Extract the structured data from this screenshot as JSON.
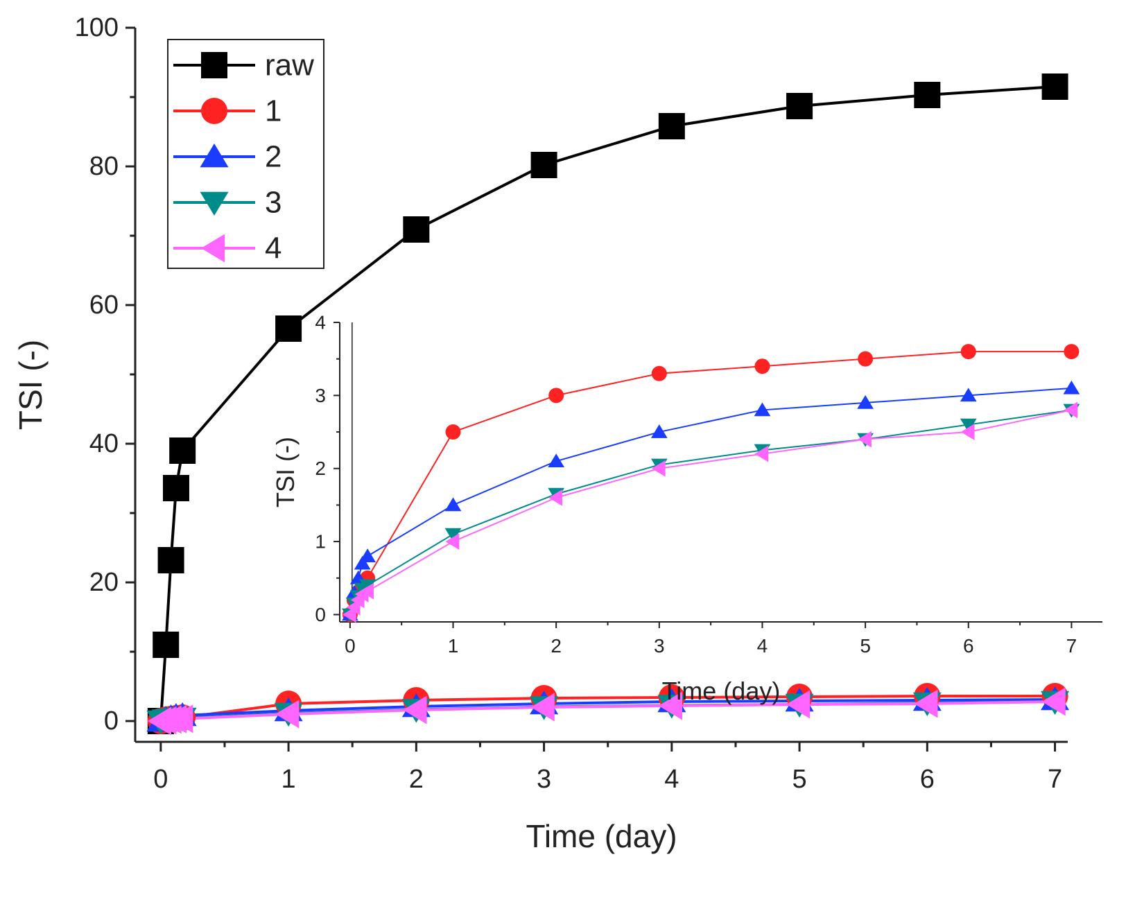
{
  "chart_data": [
    {
      "name": "main",
      "type": "line",
      "xlabel": "Time (day)",
      "ylabel": "TSI (-)",
      "xlim": [
        -0.2,
        7.1
      ],
      "ylim": [
        -3,
        100
      ],
      "xticks": [
        0,
        1,
        2,
        3,
        4,
        5,
        6,
        7
      ],
      "xtick_labels": [
        "0",
        "1",
        "2",
        "3",
        "4",
        "5",
        "6",
        "7"
      ],
      "yticks": [
        0,
        20,
        40,
        60,
        80,
        100
      ],
      "ytick_labels": [
        "0",
        "20",
        "40",
        "60",
        "80",
        "100"
      ],
      "legend": {
        "position": "top-left",
        "entries": [
          "raw",
          "1",
          "2",
          "3",
          "4"
        ]
      },
      "series": [
        {
          "name": "raw",
          "color": "#000000",
          "marker": "square",
          "x": [
            0,
            0.04,
            0.08,
            0.12,
            0.17,
            1,
            2,
            3,
            4,
            5,
            6,
            7
          ],
          "y": [
            0,
            11,
            23.2,
            33.6,
            39,
            56.6,
            70.9,
            80.2,
            85.8,
            88.7,
            90.3,
            91.5
          ]
        },
        {
          "name": "1",
          "color": "#ff2222",
          "marker": "circle",
          "x": [
            0,
            0.04,
            0.08,
            0.12,
            0.17,
            1,
            2,
            3,
            4,
            5,
            6,
            7
          ],
          "y": [
            0,
            0.2,
            0.3,
            0.4,
            0.5,
            2.5,
            3,
            3.3,
            3.4,
            3.5,
            3.6,
            3.6
          ]
        },
        {
          "name": "2",
          "color": "#1a3cff",
          "marker": "triangle-up",
          "x": [
            0,
            0.04,
            0.08,
            0.12,
            0.17,
            1,
            2,
            3,
            4,
            5,
            6,
            7
          ],
          "y": [
            0,
            0.3,
            0.5,
            0.7,
            0.8,
            1.5,
            2.1,
            2.5,
            2.8,
            2.9,
            3.0,
            3.1
          ]
        },
        {
          "name": "3",
          "color": "#008b8b",
          "marker": "triangle-down",
          "x": [
            0,
            0.04,
            0.08,
            0.12,
            0.17,
            1,
            2,
            3,
            4,
            5,
            6,
            7
          ],
          "y": [
            0,
            0.15,
            0.25,
            0.35,
            0.4,
            1.1,
            1.65,
            2.05,
            2.25,
            2.4,
            2.6,
            2.8
          ]
        },
        {
          "name": "4",
          "color": "#ff66ff",
          "marker": "triangle-left",
          "x": [
            0,
            0.04,
            0.08,
            0.12,
            0.17,
            1,
            2,
            3,
            4,
            5,
            6,
            7
          ],
          "y": [
            0,
            0.1,
            0.2,
            0.28,
            0.32,
            1.0,
            1.6,
            2.0,
            2.2,
            2.4,
            2.5,
            2.8
          ]
        }
      ]
    },
    {
      "name": "inset",
      "type": "line",
      "xlabel": "Time (day)",
      "ylabel": "TSI (-)",
      "xlim": [
        -0.1,
        7.3
      ],
      "ylim": [
        -0.1,
        4
      ],
      "xticks": [
        0,
        1,
        2,
        3,
        4,
        5,
        6,
        7
      ],
      "xtick_labels": [
        "0",
        "1",
        "2",
        "3",
        "4",
        "5",
        "6",
        "7"
      ],
      "yticks": [
        0,
        1,
        2,
        3,
        4
      ],
      "ytick_labels": [
        "0",
        "1",
        "2",
        "3",
        "4"
      ],
      "series": [
        {
          "name": "1",
          "color": "#ff2222",
          "marker": "circle",
          "x": [
            0,
            0.04,
            0.08,
            0.12,
            0.17,
            1,
            2,
            3,
            4,
            5,
            6,
            7
          ],
          "y": [
            0,
            0.2,
            0.3,
            0.4,
            0.5,
            2.5,
            3,
            3.3,
            3.4,
            3.5,
            3.6,
            3.6
          ]
        },
        {
          "name": "2",
          "color": "#1a3cff",
          "marker": "triangle-up",
          "x": [
            0,
            0.04,
            0.08,
            0.12,
            0.17,
            1,
            2,
            3,
            4,
            5,
            6,
            7
          ],
          "y": [
            0,
            0.3,
            0.5,
            0.7,
            0.8,
            1.5,
            2.1,
            2.5,
            2.8,
            2.9,
            3.0,
            3.1
          ]
        },
        {
          "name": "3",
          "color": "#008b8b",
          "marker": "triangle-down",
          "x": [
            0,
            0.04,
            0.08,
            0.12,
            0.17,
            1,
            2,
            3,
            4,
            5,
            6,
            7
          ],
          "y": [
            0,
            0.15,
            0.25,
            0.35,
            0.4,
            1.1,
            1.65,
            2.05,
            2.25,
            2.4,
            2.6,
            2.8
          ]
        },
        {
          "name": "4",
          "color": "#ff66ff",
          "marker": "triangle-left",
          "x": [
            0,
            0.04,
            0.08,
            0.12,
            0.17,
            1,
            2,
            3,
            4,
            5,
            6,
            7
          ],
          "y": [
            0,
            0.1,
            0.2,
            0.28,
            0.32,
            1.0,
            1.6,
            2.0,
            2.2,
            2.4,
            2.5,
            2.8
          ]
        }
      ]
    }
  ]
}
